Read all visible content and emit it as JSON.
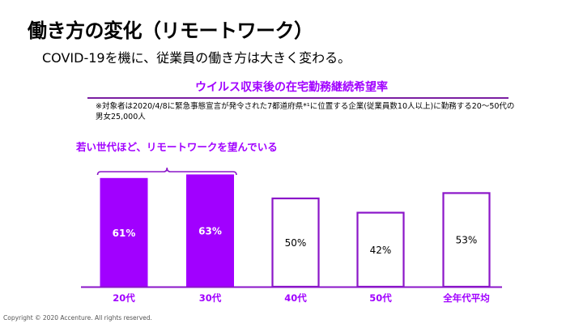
{
  "page": {
    "title": "働き方の変化（リモートワーク）",
    "subtitle": "COVID-19を機に、従業員の働き方は大きく変わる。",
    "note": "※対象者は2020/4/8に緊急事態宣言が発令された7都道府県*¹に位置する企業(従業員数10人以上)に勤務する20～50代の男女25,000人",
    "callout": "若い世代ほど、リモートワークを望んでいる",
    "copyright": "Copyright © 2020 Accenture. All rights reserved."
  },
  "colors": {
    "accent": "#a100ff",
    "outline": "#8b16c9",
    "label_highlight": "#ffffff",
    "label_normal": "#000000"
  },
  "chart_data": {
    "type": "bar",
    "title": "ウイルス収束後の在宅勤務継続希望率",
    "categories": [
      "20代",
      "30代",
      "40代",
      "50代",
      "全年代平均"
    ],
    "values": [
      61,
      63,
      50,
      42,
      53
    ],
    "value_labels": [
      "61%",
      "63%",
      "50%",
      "42%",
      "53%"
    ],
    "highlighted": [
      true,
      true,
      false,
      false,
      false
    ],
    "unit": "%",
    "xlabel": "",
    "ylabel": "",
    "ylim": [
      0,
      100
    ],
    "grid": false,
    "annotation": {
      "text": "若い世代ほど、リモートワークを望んでいる",
      "spans_categories": [
        "20代",
        "30代"
      ]
    }
  }
}
